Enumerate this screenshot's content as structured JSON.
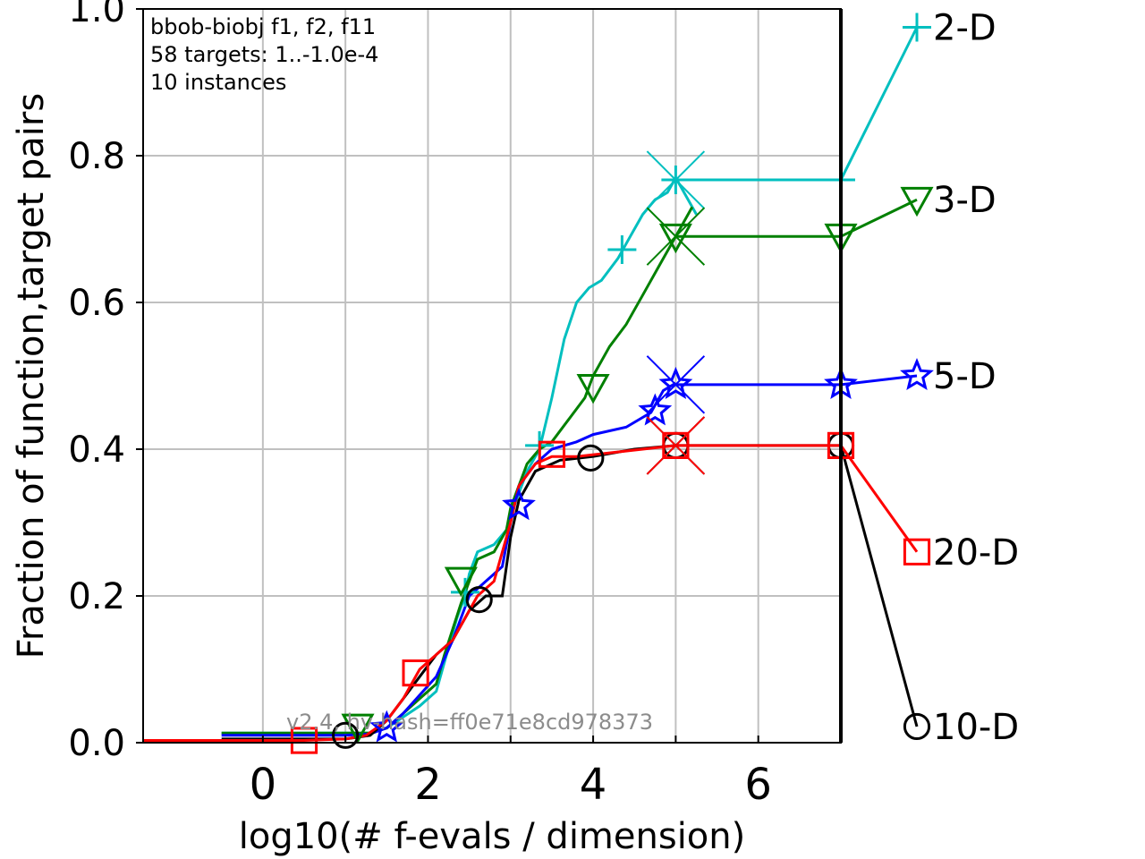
{
  "chart_data": {
    "type": "line",
    "info": [
      "bbob-biobj f1, f2, f11",
      "58 targets: 1..-1.0e-4",
      "10 instances"
    ],
    "watermark": "v2.4, hv-hash=ff0e71e8cd978373",
    "xlabel": "log10(# f-evals / dimension)",
    "ylabel": "Fraction of function,target pairs",
    "xlim": [
      -1.45,
      7.0
    ],
    "ylim": [
      0.0,
      1.0
    ],
    "xticks": [
      0,
      2,
      4,
      6
    ],
    "xtick_labels": [
      "0",
      "2",
      "4",
      "6"
    ],
    "yticks": [
      0.0,
      0.2,
      0.4,
      0.6,
      0.8,
      1.0
    ],
    "ytick_labels": [
      "0.0",
      "0.2",
      "0.4",
      "0.6",
      "0.8",
      "1.0"
    ],
    "grid": true,
    "budget_x": 7.0,
    "series": [
      {
        "name": "2-D",
        "color": "#00bfbf",
        "marker": "plus",
        "x": [
          -0.5,
          1.0,
          1.3,
          1.5,
          1.7,
          1.9,
          2.1,
          2.2,
          2.35,
          2.45,
          2.5,
          2.6,
          2.8,
          2.95,
          3.0,
          3.1,
          3.2,
          3.35,
          3.5,
          3.65,
          3.8,
          3.95,
          4.1,
          4.3,
          4.45,
          4.6,
          4.75,
          4.9,
          5.0,
          5.25
        ],
        "y": [
          0.013,
          0.013,
          0.013,
          0.02,
          0.035,
          0.05,
          0.07,
          0.11,
          0.17,
          0.2,
          0.23,
          0.26,
          0.27,
          0.29,
          0.31,
          0.34,
          0.37,
          0.4,
          0.47,
          0.55,
          0.6,
          0.62,
          0.63,
          0.66,
          0.69,
          0.72,
          0.74,
          0.75,
          0.77,
          0.72
        ],
        "marker_points": [
          [
            2.45,
            0.205
          ],
          [
            3.35,
            0.405
          ],
          [
            4.35,
            0.672
          ],
          [
            5.0,
            0.767
          ]
        ],
        "budget_marker": [
          5.0,
          0.767
        ],
        "end_y": 0.767,
        "end_label_y": 0.975
      },
      {
        "name": "3-D",
        "color": "#008000",
        "marker": "triangle-down",
        "x": [
          -0.5,
          1.0,
          1.3,
          1.5,
          1.7,
          1.9,
          2.1,
          2.2,
          2.4,
          2.5,
          2.6,
          2.8,
          2.95,
          3.0,
          3.1,
          3.2,
          3.35,
          3.5,
          3.7,
          3.9,
          4.0,
          4.2,
          4.4,
          4.6,
          4.8,
          5.0,
          5.2
        ],
        "y": [
          0.013,
          0.013,
          0.013,
          0.02,
          0.04,
          0.06,
          0.08,
          0.12,
          0.19,
          0.22,
          0.25,
          0.26,
          0.29,
          0.32,
          0.35,
          0.38,
          0.4,
          0.41,
          0.44,
          0.47,
          0.5,
          0.54,
          0.57,
          0.61,
          0.65,
          0.69,
          0.73
        ],
        "marker_points": [
          [
            1.15,
            0.022
          ],
          [
            2.4,
            0.222
          ],
          [
            4.0,
            0.485
          ],
          [
            5.0,
            0.69
          ]
        ],
        "budget_marker": [
          5.0,
          0.69
        ],
        "end_y": 0.69,
        "end_label_y": 0.74
      },
      {
        "name": "5-D",
        "color": "#0000ff",
        "marker": "star",
        "x": [
          -0.5,
          1.0,
          1.3,
          1.5,
          1.7,
          1.9,
          2.1,
          2.3,
          2.5,
          2.7,
          2.9,
          3.0,
          3.1,
          3.3,
          3.5,
          3.8,
          4.0,
          4.4,
          4.7,
          4.85,
          5.0
        ],
        "y": [
          0.01,
          0.01,
          0.012,
          0.02,
          0.04,
          0.065,
          0.09,
          0.14,
          0.2,
          0.22,
          0.24,
          0.3,
          0.35,
          0.38,
          0.4,
          0.41,
          0.42,
          0.43,
          0.45,
          0.48,
          0.49
        ],
        "marker_points": [
          [
            1.5,
            0.02
          ],
          [
            3.1,
            0.323
          ],
          [
            4.75,
            0.452
          ],
          [
            5.0,
            0.488
          ]
        ],
        "budget_marker": [
          5.0,
          0.488
        ],
        "end_y": 0.488,
        "end_label_y": 0.5
      },
      {
        "name": "10-D",
        "color": "#000000",
        "marker": "circle",
        "x": [
          -0.5,
          1.0,
          1.3,
          1.5,
          1.7,
          1.9,
          2.1,
          2.3,
          2.5,
          2.7,
          2.9,
          3.0,
          3.1,
          3.3,
          3.6,
          4.0,
          4.5,
          5.0
        ],
        "y": [
          0.005,
          0.005,
          0.01,
          0.03,
          0.06,
          0.09,
          0.12,
          0.14,
          0.18,
          0.2,
          0.2,
          0.28,
          0.33,
          0.37,
          0.385,
          0.39,
          0.4,
          0.405
        ],
        "marker_points": [
          [
            1.0,
            0.01
          ],
          [
            2.62,
            0.195
          ],
          [
            3.97,
            0.388
          ],
          [
            5.0,
            0.405
          ]
        ],
        "budget_marker": [
          5.0,
          0.405
        ],
        "end_y": 0.405,
        "end_label_y": 0.022
      },
      {
        "name": "20-D",
        "color": "#ff0000",
        "marker": "square",
        "x": [
          -1.45,
          0.5,
          1.0,
          1.25,
          1.5,
          1.7,
          1.9,
          2.1,
          2.3,
          2.45,
          2.6,
          2.8,
          3.0,
          3.1,
          3.3,
          3.5,
          3.8,
          4.2,
          4.6,
          5.0
        ],
        "y": [
          0.003,
          0.003,
          0.005,
          0.01,
          0.03,
          0.06,
          0.1,
          0.12,
          0.14,
          0.17,
          0.2,
          0.22,
          0.3,
          0.35,
          0.38,
          0.39,
          0.39,
          0.395,
          0.4,
          0.405
        ],
        "marker_points": [
          [
            0.5,
            0.003
          ],
          [
            1.85,
            0.095
          ],
          [
            3.5,
            0.393
          ],
          [
            5.0,
            0.405
          ]
        ],
        "budget_marker": [
          5.0,
          0.405
        ],
        "end_y": 0.405,
        "end_label_y": 0.26
      }
    ]
  }
}
